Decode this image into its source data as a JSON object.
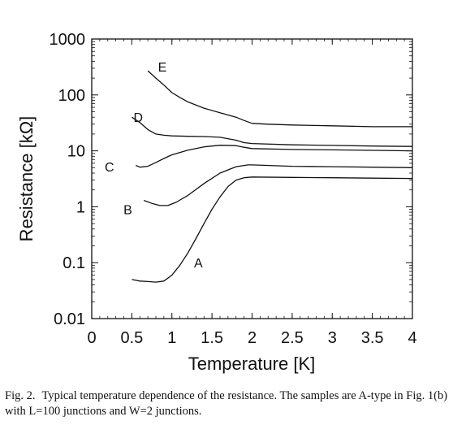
{
  "chart_data": {
    "type": "line",
    "xlabel": "Temperature [K]",
    "ylabel": "Resistance [kΩ]",
    "xlim": [
      0,
      4
    ],
    "ylim": [
      0.01,
      1000
    ],
    "yscale": "log",
    "grid": false,
    "x_ticks": [
      "0",
      "0.5",
      "1",
      "1.5",
      "2",
      "2.5",
      "3",
      "3.5",
      "4"
    ],
    "y_ticks": [
      "0.01",
      "0.1",
      "1",
      "10",
      "100",
      "1000"
    ],
    "series": [
      {
        "name": "A",
        "label_pos": [
          1.33,
          0.1
        ],
        "points": [
          [
            0.5,
            0.05
          ],
          [
            0.6,
            0.047
          ],
          [
            0.7,
            0.046
          ],
          [
            0.8,
            0.045
          ],
          [
            0.9,
            0.047
          ],
          [
            1.0,
            0.06
          ],
          [
            1.1,
            0.09
          ],
          [
            1.2,
            0.15
          ],
          [
            1.3,
            0.27
          ],
          [
            1.4,
            0.5
          ],
          [
            1.5,
            0.9
          ],
          [
            1.6,
            1.5
          ],
          [
            1.7,
            2.3
          ],
          [
            1.8,
            3.0
          ],
          [
            1.9,
            3.3
          ],
          [
            2.0,
            3.4
          ],
          [
            2.5,
            3.35
          ],
          [
            3.0,
            3.3
          ],
          [
            3.5,
            3.25
          ],
          [
            4.0,
            3.2
          ]
        ]
      },
      {
        "name": "B",
        "label_pos": [
          0.45,
          0.9
        ],
        "points": [
          [
            0.65,
            1.3
          ],
          [
            0.75,
            1.15
          ],
          [
            0.85,
            1.05
          ],
          [
            0.95,
            1.05
          ],
          [
            1.05,
            1.2
          ],
          [
            1.2,
            1.6
          ],
          [
            1.4,
            2.6
          ],
          [
            1.6,
            4.0
          ],
          [
            1.8,
            5.2
          ],
          [
            1.95,
            5.6
          ],
          [
            2.0,
            5.6
          ],
          [
            2.5,
            5.3
          ],
          [
            3.0,
            5.2
          ],
          [
            3.5,
            5.1
          ],
          [
            4.0,
            5.0
          ]
        ]
      },
      {
        "name": "C",
        "label_pos": [
          0.22,
          5.2
        ],
        "points": [
          [
            0.55,
            5.5
          ],
          [
            0.6,
            5.1
          ],
          [
            0.7,
            5.3
          ],
          [
            0.8,
            6.2
          ],
          [
            0.9,
            7.3
          ],
          [
            1.0,
            8.5
          ],
          [
            1.2,
            10.3
          ],
          [
            1.4,
            11.8
          ],
          [
            1.6,
            12.6
          ],
          [
            1.8,
            12.4
          ],
          [
            1.9,
            11.6
          ],
          [
            2.0,
            11.0
          ],
          [
            2.5,
            10.6
          ],
          [
            3.0,
            10.4
          ],
          [
            3.5,
            10.2
          ],
          [
            4.0,
            10.0
          ]
        ]
      },
      {
        "name": "D",
        "label_pos": [
          0.58,
          40
        ],
        "points": [
          [
            0.5,
            40
          ],
          [
            0.6,
            32
          ],
          [
            0.7,
            24
          ],
          [
            0.8,
            20
          ],
          [
            0.9,
            19
          ],
          [
            1.0,
            18.5
          ],
          [
            1.2,
            18.2
          ],
          [
            1.4,
            18.0
          ],
          [
            1.6,
            17.5
          ],
          [
            1.8,
            15.5
          ],
          [
            1.9,
            14.0
          ],
          [
            2.0,
            13.5
          ],
          [
            2.5,
            12.8
          ],
          [
            3.0,
            12.5
          ],
          [
            3.5,
            12.2
          ],
          [
            4.0,
            12.0
          ]
        ]
      },
      {
        "name": "E",
        "label_pos": [
          0.88,
          320
        ],
        "points": [
          [
            0.7,
            270
          ],
          [
            0.8,
            200
          ],
          [
            0.9,
            150
          ],
          [
            1.0,
            110
          ],
          [
            1.1,
            90
          ],
          [
            1.2,
            75
          ],
          [
            1.4,
            58
          ],
          [
            1.6,
            48
          ],
          [
            1.8,
            40
          ],
          [
            1.9,
            35
          ],
          [
            2.0,
            31
          ],
          [
            2.2,
            30
          ],
          [
            2.5,
            29
          ],
          [
            3.0,
            28
          ],
          [
            3.5,
            27
          ],
          [
            4.0,
            27
          ]
        ]
      }
    ]
  },
  "caption": {
    "fig_num": "Fig. 2.",
    "text": "Typical temperature dependence of the resistance. The samples are A-type in Fig. 1(b) with L=100 junctions and W=2 junctions."
  }
}
